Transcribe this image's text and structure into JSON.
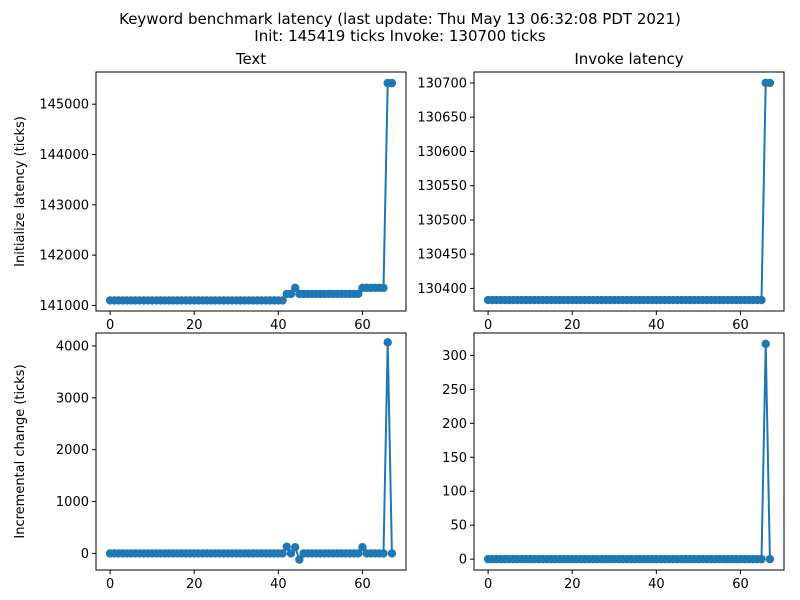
{
  "figure": {
    "title_line1": "Keyword benchmark latency (last update: Thu May 13 06:32:08 PDT 2021)",
    "title_line2": "Init: 145419 ticks Invoke: 130700 ticks",
    "series_color": "#1f77b4"
  },
  "chart_data": [
    {
      "type": "line",
      "title": "Text",
      "xlabel": "",
      "ylabel": "Initialize latency (ticks)",
      "xlim": [
        -3.35,
        70.35
      ],
      "ylim": [
        140890,
        145640
      ],
      "xticks": [
        0,
        20,
        40,
        60
      ],
      "yticks": [
        141000,
        142000,
        143000,
        144000,
        145000
      ],
      "x": [
        0,
        1,
        2,
        3,
        4,
        5,
        6,
        7,
        8,
        9,
        10,
        11,
        12,
        13,
        14,
        15,
        16,
        17,
        18,
        19,
        20,
        21,
        22,
        23,
        24,
        25,
        26,
        27,
        28,
        29,
        30,
        31,
        32,
        33,
        34,
        35,
        36,
        37,
        38,
        39,
        40,
        41,
        42,
        43,
        44,
        45,
        46,
        47,
        48,
        49,
        50,
        51,
        52,
        53,
        54,
        55,
        56,
        57,
        58,
        59,
        60,
        61,
        62,
        63,
        64,
        65,
        66,
        67
      ],
      "values": [
        141100,
        141100,
        141100,
        141100,
        141100,
        141100,
        141100,
        141100,
        141100,
        141100,
        141100,
        141100,
        141100,
        141100,
        141100,
        141100,
        141100,
        141100,
        141100,
        141100,
        141100,
        141100,
        141100,
        141100,
        141100,
        141100,
        141100,
        141100,
        141100,
        141100,
        141100,
        141100,
        141100,
        141100,
        141100,
        141100,
        141100,
        141100,
        141100,
        141100,
        141100,
        141100,
        141230,
        141230,
        141350,
        141230,
        141230,
        141230,
        141230,
        141230,
        141230,
        141230,
        141230,
        141230,
        141230,
        141230,
        141230,
        141230,
        141230,
        141230,
        141350,
        141350,
        141350,
        141350,
        141350,
        141350,
        145419,
        145419
      ]
    },
    {
      "type": "line",
      "title": "Invoke latency",
      "xlabel": "",
      "ylabel": "",
      "xlim": [
        -3.35,
        70.35
      ],
      "ylim": [
        130367,
        130716
      ],
      "xticks": [
        0,
        20,
        40,
        60
      ],
      "yticks": [
        130400,
        130450,
        130500,
        130550,
        130600,
        130650,
        130700
      ],
      "x": [
        0,
        1,
        2,
        3,
        4,
        5,
        6,
        7,
        8,
        9,
        10,
        11,
        12,
        13,
        14,
        15,
        16,
        17,
        18,
        19,
        20,
        21,
        22,
        23,
        24,
        25,
        26,
        27,
        28,
        29,
        30,
        31,
        32,
        33,
        34,
        35,
        36,
        37,
        38,
        39,
        40,
        41,
        42,
        43,
        44,
        45,
        46,
        47,
        48,
        49,
        50,
        51,
        52,
        53,
        54,
        55,
        56,
        57,
        58,
        59,
        60,
        61,
        62,
        63,
        64,
        65,
        66,
        67
      ],
      "values": [
        130383,
        130383,
        130383,
        130383,
        130383,
        130383,
        130383,
        130383,
        130383,
        130383,
        130383,
        130383,
        130383,
        130383,
        130383,
        130383,
        130383,
        130383,
        130383,
        130383,
        130383,
        130383,
        130383,
        130383,
        130383,
        130383,
        130383,
        130383,
        130383,
        130383,
        130383,
        130383,
        130383,
        130383,
        130383,
        130383,
        130383,
        130383,
        130383,
        130383,
        130383,
        130383,
        130383,
        130383,
        130383,
        130383,
        130383,
        130383,
        130383,
        130383,
        130383,
        130383,
        130383,
        130383,
        130383,
        130383,
        130383,
        130383,
        130383,
        130383,
        130383,
        130383,
        130383,
        130383,
        130383,
        130383,
        130700,
        130700
      ]
    },
    {
      "type": "line",
      "title": "",
      "xlabel": "",
      "ylabel": "Incremental change (ticks)",
      "xlim": [
        -3.35,
        70.35
      ],
      "ylim": [
        -320,
        4250
      ],
      "xticks": [
        0,
        20,
        40,
        60
      ],
      "yticks": [
        0,
        1000,
        2000,
        3000,
        4000
      ],
      "x": [
        0,
        1,
        2,
        3,
        4,
        5,
        6,
        7,
        8,
        9,
        10,
        11,
        12,
        13,
        14,
        15,
        16,
        17,
        18,
        19,
        20,
        21,
        22,
        23,
        24,
        25,
        26,
        27,
        28,
        29,
        30,
        31,
        32,
        33,
        34,
        35,
        36,
        37,
        38,
        39,
        40,
        41,
        42,
        43,
        44,
        45,
        46,
        47,
        48,
        49,
        50,
        51,
        52,
        53,
        54,
        55,
        56,
        57,
        58,
        59,
        60,
        61,
        62,
        63,
        64,
        65,
        66,
        67
      ],
      "values": [
        0,
        0,
        0,
        0,
        0,
        0,
        0,
        0,
        0,
        0,
        0,
        0,
        0,
        0,
        0,
        0,
        0,
        0,
        0,
        0,
        0,
        0,
        0,
        0,
        0,
        0,
        0,
        0,
        0,
        0,
        0,
        0,
        0,
        0,
        0,
        0,
        0,
        0,
        0,
        0,
        0,
        0,
        130,
        0,
        120,
        -120,
        0,
        0,
        0,
        0,
        0,
        0,
        0,
        0,
        0,
        0,
        0,
        0,
        0,
        0,
        120,
        0,
        0,
        0,
        0,
        0,
        4069,
        0
      ]
    },
    {
      "type": "line",
      "title": "",
      "xlabel": "",
      "ylabel": "",
      "xlim": [
        -3.35,
        70.35
      ],
      "ylim": [
        -16,
        333
      ],
      "xticks": [
        0,
        20,
        40,
        60
      ],
      "yticks": [
        0,
        50,
        100,
        150,
        200,
        250,
        300
      ],
      "x": [
        0,
        1,
        2,
        3,
        4,
        5,
        6,
        7,
        8,
        9,
        10,
        11,
        12,
        13,
        14,
        15,
        16,
        17,
        18,
        19,
        20,
        21,
        22,
        23,
        24,
        25,
        26,
        27,
        28,
        29,
        30,
        31,
        32,
        33,
        34,
        35,
        36,
        37,
        38,
        39,
        40,
        41,
        42,
        43,
        44,
        45,
        46,
        47,
        48,
        49,
        50,
        51,
        52,
        53,
        54,
        55,
        56,
        57,
        58,
        59,
        60,
        61,
        62,
        63,
        64,
        65,
        66,
        67
      ],
      "values": [
        0,
        0,
        0,
        0,
        0,
        0,
        0,
        0,
        0,
        0,
        0,
        0,
        0,
        0,
        0,
        0,
        0,
        0,
        0,
        0,
        0,
        0,
        0,
        0,
        0,
        0,
        0,
        0,
        0,
        0,
        0,
        0,
        0,
        0,
        0,
        0,
        0,
        0,
        0,
        0,
        0,
        0,
        0,
        0,
        0,
        0,
        0,
        0,
        0,
        0,
        0,
        0,
        0,
        0,
        0,
        0,
        0,
        0,
        0,
        0,
        0,
        0,
        0,
        0,
        0,
        0,
        317,
        0
      ]
    }
  ]
}
